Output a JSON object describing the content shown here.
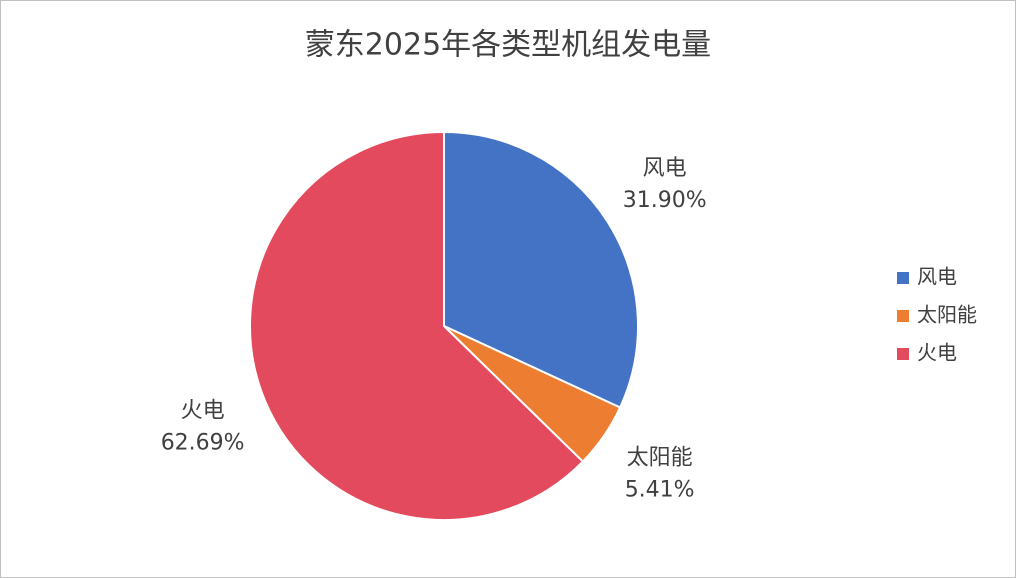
{
  "chart_data": {
    "type": "pie",
    "title": "蒙东2025年各类型机组发电量",
    "categories": [
      "风电",
      "太阳能",
      "火电"
    ],
    "values": [
      31.9,
      5.41,
      62.69
    ],
    "value_labels": [
      "31.90%",
      "5.41%",
      "62.69%"
    ],
    "colors": [
      "#4472c4",
      "#ed7d31",
      "#e34a5e"
    ],
    "legend": "right"
  }
}
